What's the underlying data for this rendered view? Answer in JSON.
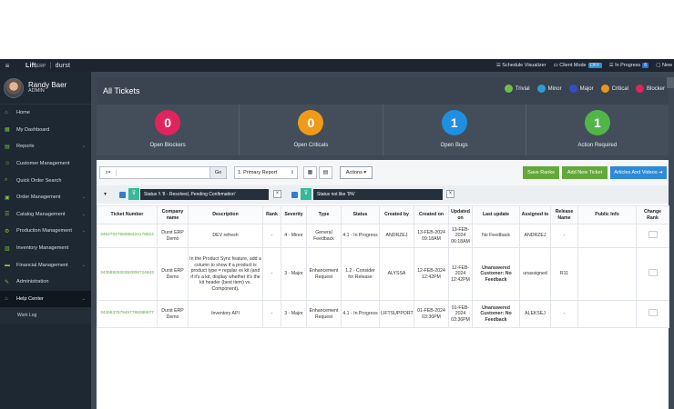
{
  "topbar": {
    "brand_lift": "Lift",
    "brand_erp": "ERP",
    "brand_sep": "|",
    "brand_durst": "durst",
    "schedule_visualizer": "Schedule Visualizer",
    "client_mode": "Client Mode",
    "client_mode_state": "OFF",
    "in_progress": "In Progress",
    "in_progress_count": "6",
    "new": "New"
  },
  "profile": {
    "name": "Randy Baer",
    "role": "ADMIN"
  },
  "sidebar": {
    "items": [
      {
        "label": "Home",
        "icon": "home-icon",
        "glyph": "⌂"
      },
      {
        "label": "My Dashboard",
        "icon": "dashboard-icon",
        "glyph": "▦"
      },
      {
        "label": "Reports",
        "icon": "reports-icon",
        "glyph": "▤"
      },
      {
        "label": "Customer Management",
        "icon": "customer-icon",
        "glyph": "☺"
      },
      {
        "label": "Quick Order Search",
        "icon": "search-icon",
        "glyph": "⌕"
      },
      {
        "label": "Order Management",
        "icon": "order-icon",
        "glyph": "▣"
      },
      {
        "label": "Catalog Management",
        "icon": "catalog-icon",
        "glyph": "☰"
      },
      {
        "label": "Production Management",
        "icon": "production-icon",
        "glyph": "⚙"
      },
      {
        "label": "Inventory Management",
        "icon": "inventory-icon",
        "glyph": "▥"
      },
      {
        "label": "Financial Management",
        "icon": "financial-icon",
        "glyph": "▬"
      },
      {
        "label": "Administration",
        "icon": "admin-icon",
        "glyph": "✎"
      },
      {
        "label": "Help Center",
        "icon": "help-icon",
        "glyph": "⌂"
      }
    ],
    "sub_item": "Work Log"
  },
  "header": {
    "title": "All Tickets",
    "legend": [
      {
        "label": "Trivial",
        "color": "#6cc04a"
      },
      {
        "label": "Minor",
        "color": "#2f9bd6"
      },
      {
        "label": "Major",
        "color": "#3050c8"
      },
      {
        "label": "Critical",
        "color": "#e8961e"
      },
      {
        "label": "Blocker",
        "color": "#e0245e"
      }
    ]
  },
  "stats": [
    {
      "value": "0",
      "label": "Open Blockers",
      "color": "#e0245e"
    },
    {
      "value": "0",
      "label": "Open Criticals",
      "color": "#f09a1a"
    },
    {
      "value": "1",
      "label": "Open Bugs",
      "color": "#1e8fe1"
    },
    {
      "value": "1",
      "label": "Action Required",
      "color": "#52b548"
    }
  ],
  "toolbar": {
    "search_placeholder": "",
    "go": "Go",
    "report_select": "1. Primary Report",
    "actions": "Actions",
    "save_ranks": "Save Ranks",
    "add_ticket": "Add New Ticket",
    "articles_videos": "Articles And Videos"
  },
  "filters": [
    {
      "text": "Status !\\ '8 - Resolved, Pending Confirmation'"
    },
    {
      "text": "Status not like '9%'"
    }
  ],
  "table": {
    "headers": [
      "Ticket Number",
      "Company name",
      "Description",
      "Rank",
      "Severity",
      "Type",
      "Status",
      "Created by",
      "Created on",
      "Updated on",
      "Last update",
      "Assigned to",
      "Release Name",
      "Public Info",
      "Change Rank"
    ],
    "rows": [
      {
        "ticket": "3454704756658424178814",
        "company": "Durst ERP Demo",
        "description": "DEV refresh",
        "rank": "-",
        "severity": "4 - Minor",
        "type": "General Feedback",
        "status": "4.1 - In Progress",
        "created_by": "ANDRZEJ",
        "created_on": "13-FEB-2024 09:18AM",
        "updated_on": "13-FEB-2024 06:18AM",
        "last_update": "No Feedback",
        "assigned": "ANDRZEJ",
        "release": "-",
        "public": ""
      },
      {
        "ticket": "3435892530353006724843",
        "company": "Durst ERP Demo",
        "description": "In the Product Sync feature, add a column to show if a product is product type = regular vs kit (and if it's a kit, display whether it's the kit header (best item) vs. Component).",
        "rank": "-",
        "severity": "3 - Major",
        "type": "Enhancement Request",
        "status": "1.2 - Consider for Release",
        "created_by": "ALYSSA",
        "created_on": "12-FEB-2024 12:42PM",
        "updated_on": "12-FEB-2024 12:42PM",
        "last_update": "Unanswered Customer: No Feedback",
        "assigned": "unassigned",
        "release": "R11",
        "public": ""
      },
      {
        "ticket": "3426637579457795080677",
        "company": "Durst ERP Demo",
        "description": "Inventory API",
        "rank": "-",
        "severity": "3 - Major",
        "type": "Enhancement Request",
        "status": "4.1 - In Progress",
        "created_by": "LIFTSUPPORT",
        "created_on": "01-FEB-2024 03:36PM",
        "updated_on": "01-FEB-2024 03:36PM",
        "last_update": "Unanswered Customer: No Feedback",
        "assigned": "ALEKSEJ",
        "release": "-",
        "public": ""
      }
    ]
  }
}
